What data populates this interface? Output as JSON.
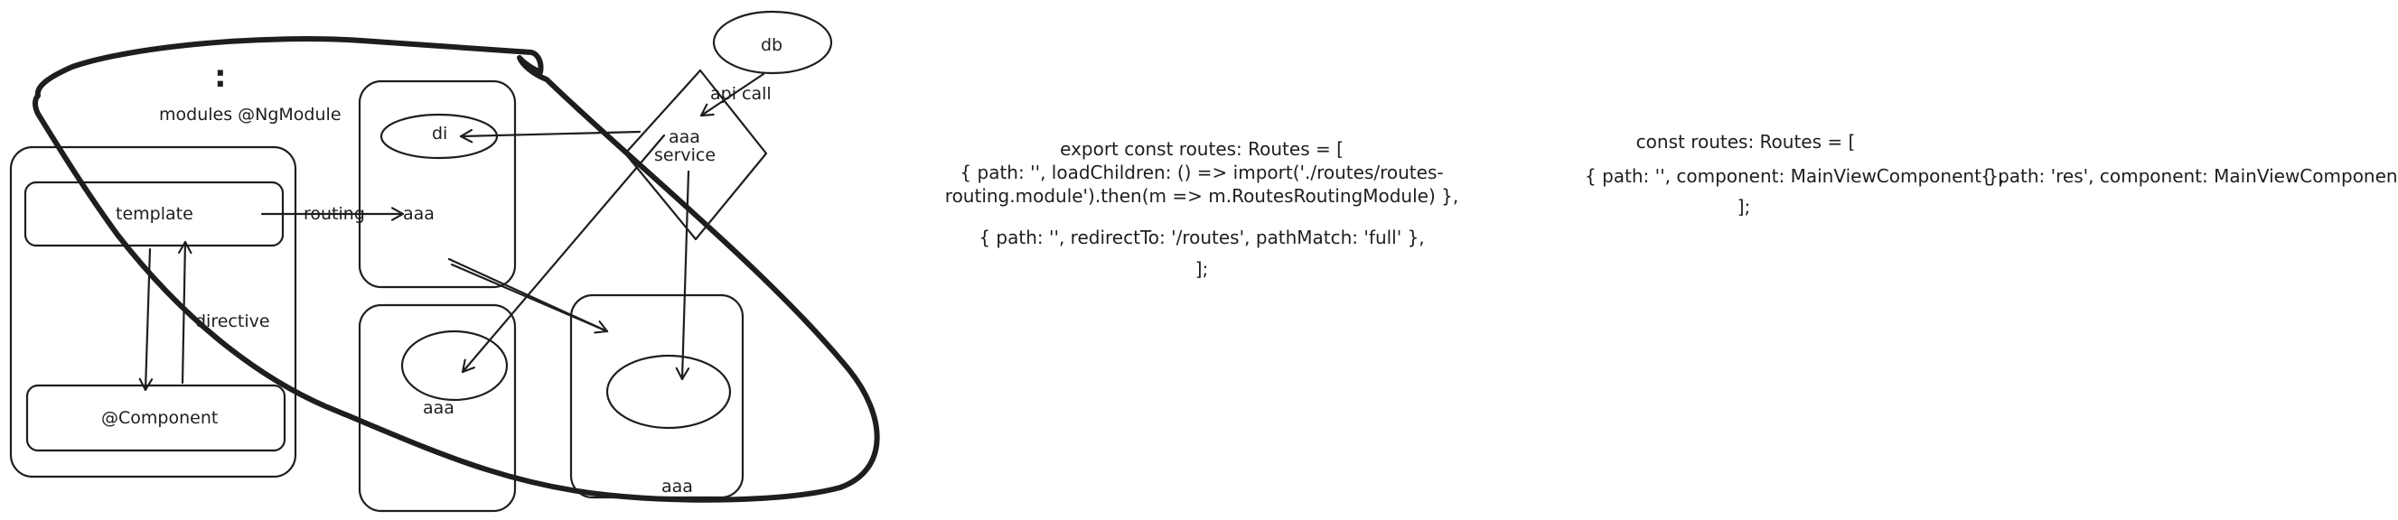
{
  "diagram": {
    "dots": ":",
    "modules_label": "modules @NgModule",
    "template_label": "template",
    "routing_label": "routing",
    "aaa_routing_target": "aaa",
    "directive_label": "directive",
    "component_label": "@Component",
    "di_label": "di",
    "aaa_bottom_left": "aaa",
    "aaa_bottom_right": "aaa",
    "service_aaa": "aaa",
    "service_label": "service",
    "api_call_label": "api call",
    "db_label": "db"
  },
  "code_left": {
    "line1": "export const routes: Routes = [",
    "line2": "{ path: '', loadChildren: () => import('./routes/routes-",
    "line3": "routing.module').then(m => m.RoutesRoutingModule) },",
    "line4": "{ path: '', redirectTo: '/routes', pathMatch: 'full' },",
    "line5": "];"
  },
  "code_right": {
    "line1": "const routes: Routes = [",
    "line2a": "{ path: '', component: MainViewComponent },",
    "line2b": "{ path: 'res', component: MainViewComponent },",
    "line3": "];"
  }
}
